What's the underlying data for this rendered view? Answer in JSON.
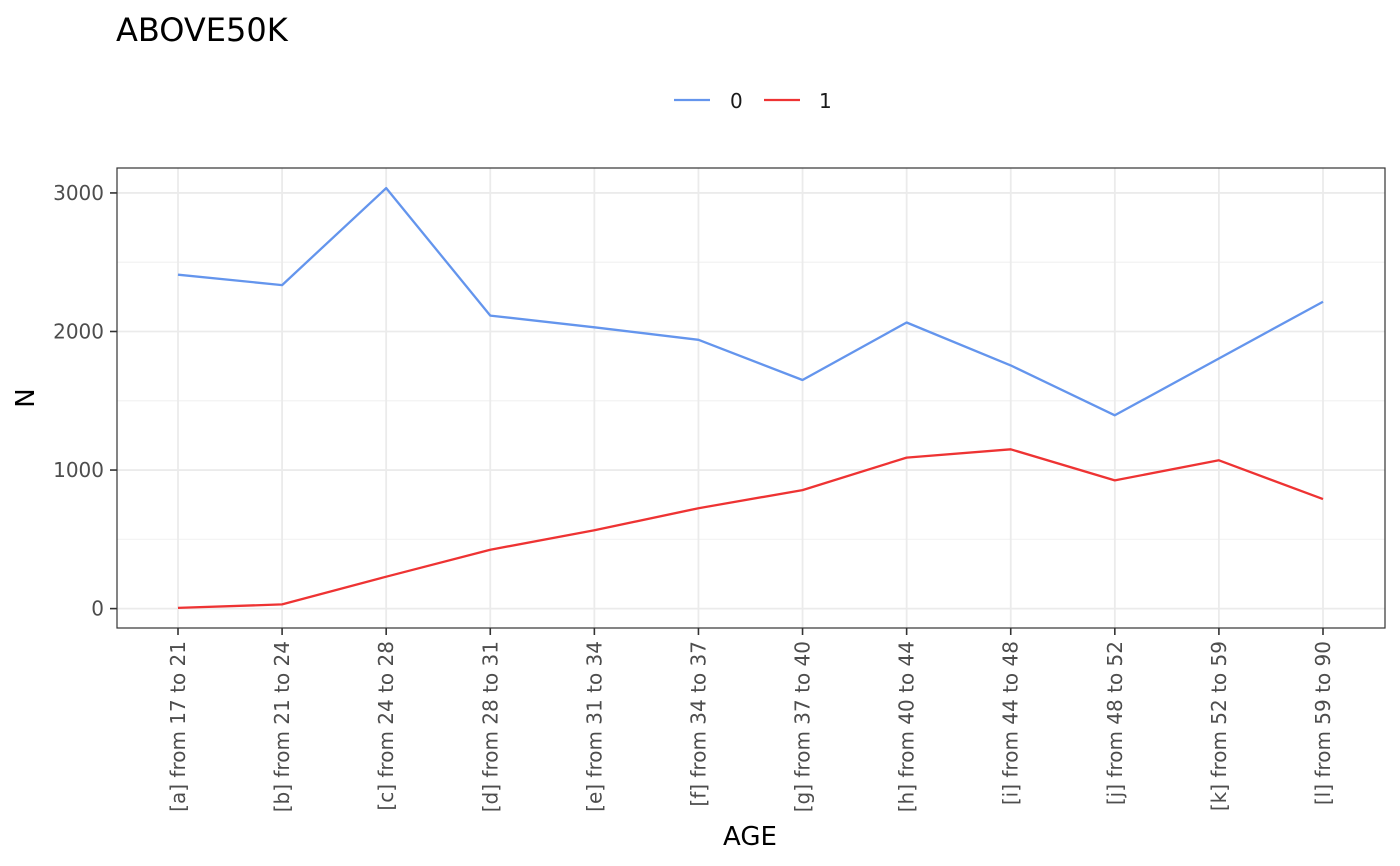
{
  "chart_data": {
    "type": "line",
    "title": "ABOVE50K",
    "xlabel": "AGE",
    "ylabel": "N",
    "categories": [
      "[a] from 17 to 21",
      "[b] from 21 to 24",
      "[c] from 24 to 28",
      "[d] from 28 to 31",
      "[e] from 31 to 34",
      "[f] from 34 to 37",
      "[g] from 37 to 40",
      "[h] from 40 to 44",
      "[i] from 44 to 48",
      "[j] from 48 to 52",
      "[k] from 52 to 59",
      "[l] from 59 to 90"
    ],
    "series": [
      {
        "name": "0",
        "color": "#6495ED",
        "values": [
          2410,
          2335,
          3035,
          2115,
          2030,
          1940,
          1650,
          2065,
          1755,
          1395,
          1805,
          2215
        ]
      },
      {
        "name": "1",
        "color": "#EE3333",
        "values": [
          5,
          30,
          230,
          425,
          565,
          725,
          855,
          1090,
          1150,
          925,
          1070,
          790
        ]
      }
    ],
    "yticks": [
      0,
      1000,
      2000,
      3000
    ],
    "ylim": [
      -140,
      3180
    ],
    "grid": true,
    "legend_position": "top"
  }
}
